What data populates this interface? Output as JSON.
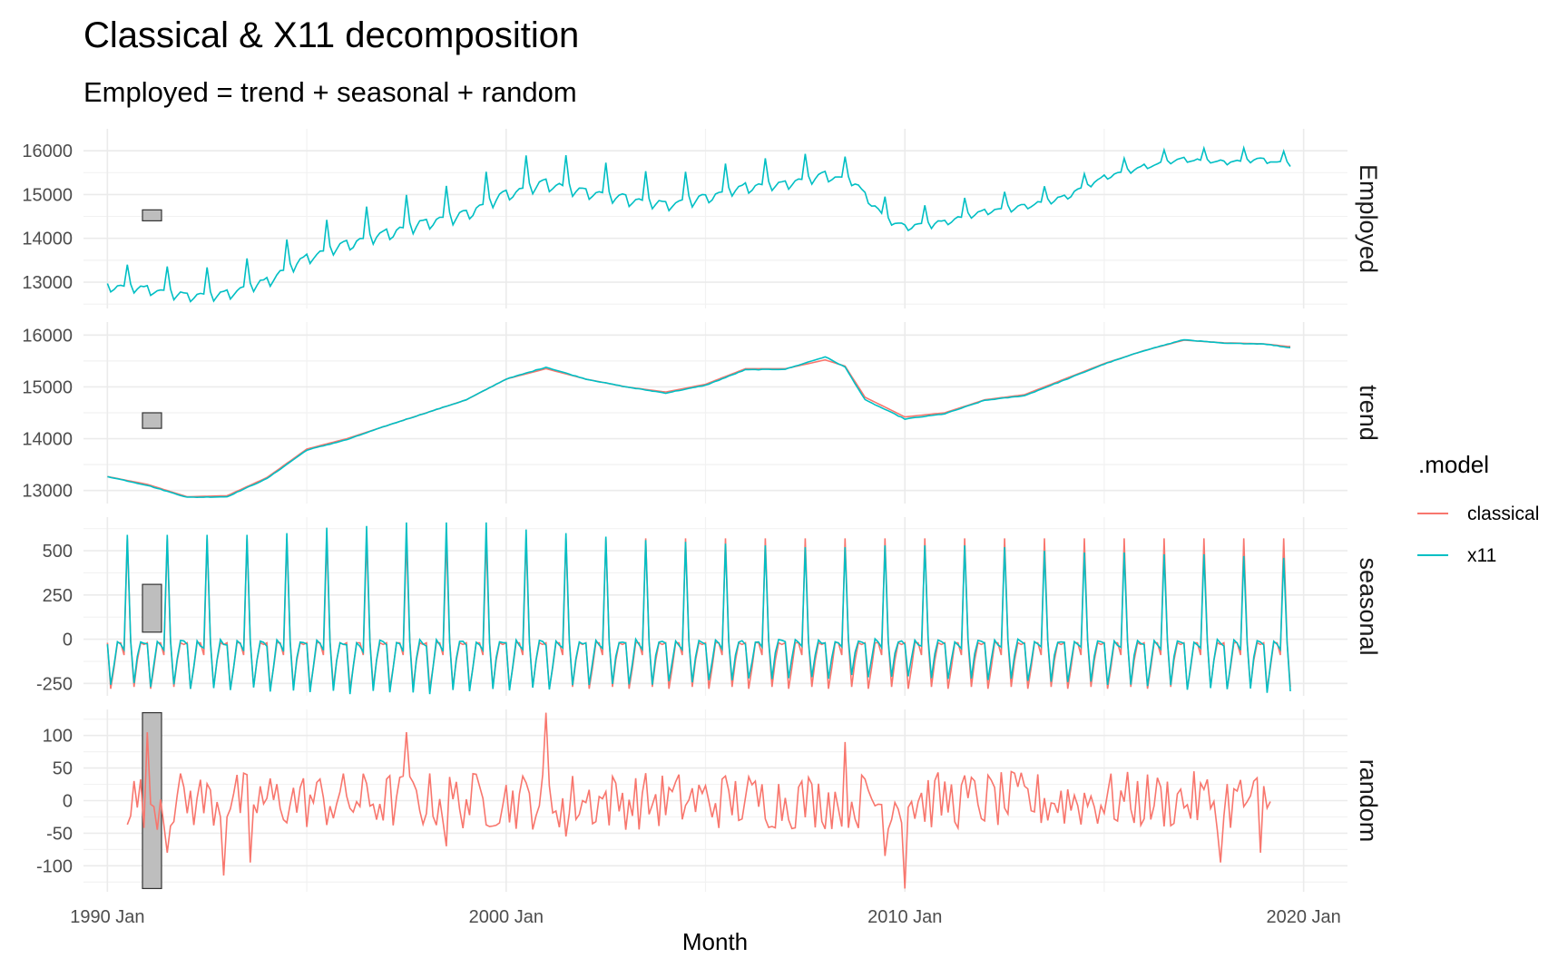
{
  "chart_data": {
    "type": "line",
    "title": "Classical & X11 decomposition",
    "subtitle": "Employed = trend + seasonal + random",
    "xlabel": "Month",
    "x_ticks": [
      "1990 Jan",
      "2000 Jan",
      "2010 Jan",
      "2020 Jan"
    ],
    "xlim": [
      "1989 Jun",
      "2021 Feb"
    ],
    "grid": true,
    "legend": {
      "title": ".model",
      "position": "right",
      "entries": [
        {
          "name": "classical",
          "color": "#F8766D"
        },
        {
          "name": "x11",
          "color": "#00BFC4"
        }
      ]
    },
    "panels": [
      {
        "name": "Employed",
        "ylim": [
          12400,
          16500
        ],
        "y_ticks": [
          13000,
          14000,
          15000,
          16000
        ],
        "y_tick_labels": [
          "13000",
          "14000",
          "15000",
          "16000"
        ],
        "scale_bar": [
          14400,
          14650
        ],
        "series": [
          {
            "name": "x11",
            "trend_points": [
              [
                1990.0,
                13000
              ],
              [
                1991.0,
                12950
              ],
              [
                1992.0,
                12800
              ],
              [
                1993.0,
                12850
              ],
              [
                1994.0,
                13150
              ],
              [
                1995.0,
                13700
              ],
              [
                1996.0,
                14000
              ],
              [
                1997.0,
                14250
              ],
              [
                1998.0,
                14500
              ],
              [
                1999.0,
                14700
              ],
              [
                2000.0,
                15150
              ],
              [
                2001.0,
                15400
              ],
              [
                2002.0,
                15200
              ],
              [
                2003.0,
                15050
              ],
              [
                2004.0,
                14900
              ],
              [
                2005.0,
                15050
              ],
              [
                2006.0,
                15300
              ],
              [
                2007.0,
                15350
              ],
              [
                2008.0,
                15550
              ],
              [
                2008.7,
                15400
              ],
              [
                2009.5,
                14550
              ],
              [
                2010.0,
                14350
              ],
              [
                2011.0,
                14450
              ],
              [
                2012.0,
                14700
              ],
              [
                2013.0,
                14800
              ],
              [
                2014.0,
                15000
              ],
              [
                2015.0,
                15450
              ],
              [
                2016.0,
                15700
              ],
              [
                2017.0,
                15850
              ],
              [
                2018.0,
                15800
              ],
              [
                2019.0,
                15850
              ],
              [
                2019.6,
                15750
              ]
            ]
          }
        ]
      },
      {
        "name": "trend",
        "ylim": [
          12750,
          16250
        ],
        "y_ticks": [
          13000,
          14000,
          15000,
          16000
        ],
        "y_tick_labels": [
          "13000",
          "14000",
          "15000",
          "16000"
        ],
        "scale_bar": [
          14200,
          14500
        ],
        "series": [
          {
            "name": "classical",
            "points": [
              [
                1990.0,
                13270
              ],
              [
                1991.0,
                13120
              ],
              [
                1992.0,
                12880
              ],
              [
                1993.0,
                12900
              ],
              [
                1994.0,
                13250
              ],
              [
                1995.0,
                13800
              ],
              [
                1996.0,
                14000
              ],
              [
                1997.0,
                14250
              ],
              [
                1998.0,
                14500
              ],
              [
                1999.0,
                14750
              ],
              [
                2000.0,
                15150
              ],
              [
                2001.0,
                15350
              ],
              [
                2002.0,
                15150
              ],
              [
                2003.0,
                15000
              ],
              [
                2004.0,
                14900
              ],
              [
                2005.0,
                15050
              ],
              [
                2006.0,
                15350
              ],
              [
                2007.0,
                15350
              ],
              [
                2008.0,
                15520
              ],
              [
                2008.5,
                15400
              ],
              [
                2009.0,
                14800
              ],
              [
                2010.0,
                14420
              ],
              [
                2011.0,
                14500
              ],
              [
                2012.0,
                14750
              ],
              [
                2013.0,
                14850
              ],
              [
                2014.0,
                15150
              ],
              [
                2015.0,
                15450
              ],
              [
                2016.0,
                15700
              ],
              [
                2017.0,
                15900
              ],
              [
                2018.0,
                15850
              ],
              [
                2019.0,
                15830
              ],
              [
                2019.6,
                15780
              ]
            ]
          },
          {
            "name": "x11",
            "points": [
              [
                1990.0,
                13270
              ],
              [
                1991.0,
                13100
              ],
              [
                1992.0,
                12870
              ],
              [
                1993.0,
                12880
              ],
              [
                1994.0,
                13230
              ],
              [
                1995.0,
                13780
              ],
              [
                1996.0,
                13980
              ],
              [
                1997.0,
                14250
              ],
              [
                1998.0,
                14500
              ],
              [
                1999.0,
                14750
              ],
              [
                2000.0,
                15150
              ],
              [
                2001.0,
                15380
              ],
              [
                2002.0,
                15150
              ],
              [
                2003.0,
                15000
              ],
              [
                2004.0,
                14880
              ],
              [
                2005.0,
                15030
              ],
              [
                2006.0,
                15330
              ],
              [
                2007.0,
                15340
              ],
              [
                2008.0,
                15580
              ],
              [
                2008.5,
                15380
              ],
              [
                2009.0,
                14750
              ],
              [
                2010.0,
                14380
              ],
              [
                2011.0,
                14480
              ],
              [
                2012.0,
                14740
              ],
              [
                2013.0,
                14830
              ],
              [
                2014.0,
                15130
              ],
              [
                2015.0,
                15440
              ],
              [
                2016.0,
                15700
              ],
              [
                2017.0,
                15910
              ],
              [
                2018.0,
                15840
              ],
              [
                2019.0,
                15830
              ],
              [
                2019.6,
                15760
              ]
            ]
          }
        ]
      },
      {
        "name": "seasonal",
        "ylim": [
          -320,
          690
        ],
        "y_ticks": [
          -250,
          0,
          250,
          500
        ],
        "y_tick_labels": [
          "-250",
          "0",
          "250",
          "500"
        ],
        "scale_bar": [
          40,
          310
        ],
        "series": [
          {
            "name": "classical",
            "monthly_pattern": [
              -20,
              -280,
              -160,
              -20,
              -20,
              -90,
              570,
              -10,
              -270,
              -120,
              -20,
              -30
            ]
          },
          {
            "name": "x11",
            "monthly_pattern_early": [
              -30,
              -290,
              -150,
              -10,
              -30,
              -60,
              590,
              -10,
              -280,
              -110,
              -10,
              -20
            ],
            "peak_values": [
              590,
              590,
              590,
              590,
              600,
              630,
              640,
              660,
              660,
              660,
              620,
              600,
              580,
              560,
              550,
              540,
              530,
              520,
              520,
              530,
              530,
              530,
              520,
              500,
              490,
              490,
              480,
              480,
              470,
              460
            ]
          }
        ]
      },
      {
        "name": "random",
        "ylim": [
          -140,
          140
        ],
        "y_ticks": [
          -100,
          -50,
          0,
          50,
          100
        ],
        "y_tick_labels": [
          "-100",
          "-50",
          "0",
          "50",
          "100"
        ],
        "scale_bar": [
          -135,
          135
        ],
        "series": [
          {
            "name": "classical",
            "x_start": 1990.5,
            "x_end": 2019.2,
            "notable_points": [
              [
                1991.0,
                105
              ],
              [
                1991.5,
                -80
              ],
              [
                1992.9,
                -115
              ],
              [
                1993.6,
                -95
              ],
              [
                1997.5,
                105
              ],
              [
                1998.5,
                -70
              ],
              [
                2001.0,
                135
              ],
              [
                2001.5,
                -55
              ],
              [
                2008.5,
                90
              ],
              [
                2009.5,
                -85
              ],
              [
                2010.0,
                -135
              ],
              [
                2017.9,
                -95
              ],
              [
                2018.9,
                -80
              ]
            ]
          }
        ]
      }
    ]
  }
}
